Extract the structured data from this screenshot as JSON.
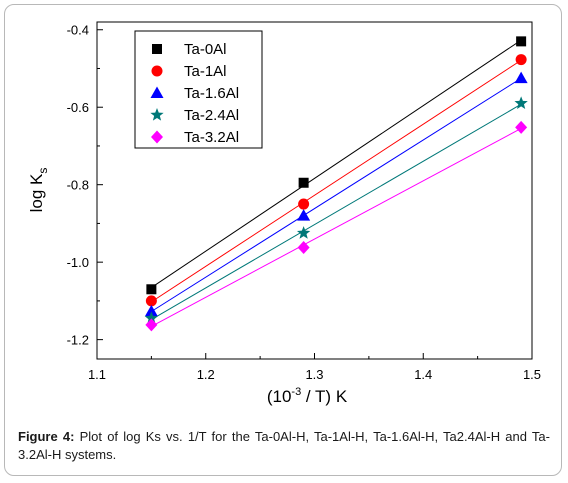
{
  "chart_data": {
    "type": "scatter",
    "xlabel_base": "(10",
    "xlabel_sup": "-3",
    "xlabel_rest": " / T) K",
    "ylabel_main": "log K",
    "ylabel_sub": "s",
    "xlim": [
      1.1,
      1.5
    ],
    "ylim": [
      -1.25,
      -0.38
    ],
    "xticks": [
      1.1,
      1.2,
      1.3,
      1.4,
      1.5
    ],
    "xtick_labels": [
      "1.1",
      "1.2",
      "1.3",
      "1.4",
      "1.5"
    ],
    "yticks": [
      -1.2,
      -1.0,
      -0.8,
      -0.6,
      -0.4
    ],
    "ytick_labels": [
      "-1.2",
      "-1.0",
      "-0.8",
      "-0.6",
      "-0.4"
    ],
    "legend_position": "top-left",
    "x": [
      1.15,
      1.29,
      1.49
    ],
    "series": [
      {
        "name": "Ta-0Al",
        "color": "#000000",
        "marker": "square",
        "values": [
          -1.07,
          -0.795,
          -0.43
        ]
      },
      {
        "name": "Ta-1Al",
        "color": "#ff0000",
        "marker": "circle",
        "values": [
          -1.1,
          -0.85,
          -0.477
        ]
      },
      {
        "name": "Ta-1.6Al",
        "color": "#0000ff",
        "marker": "triangle",
        "values": [
          -1.127,
          -0.88,
          -0.525
        ]
      },
      {
        "name": "Ta-2.4Al",
        "color": "#007878",
        "marker": "star",
        "values": [
          -1.145,
          -0.925,
          -0.59
        ]
      },
      {
        "name": "Ta-3.2Al",
        "color": "#ff00ff",
        "marker": "diamond",
        "values": [
          -1.162,
          -0.962,
          -0.652
        ]
      }
    ]
  },
  "caption": {
    "label": "Figure 4:",
    "text": " Plot of log Ks vs. 1/T for the Ta-0Al-H, Ta-1Al-H, Ta-1.6Al-H, Ta2.4Al-H and Ta-3.2Al-H systems."
  }
}
